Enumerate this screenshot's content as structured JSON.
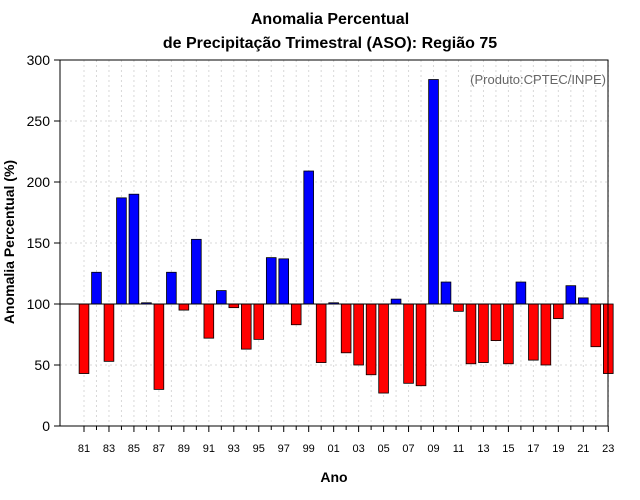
{
  "chart_data": {
    "type": "bar",
    "title_line1": "Anomalia Percentual",
    "title_line2": "de Precipitação Trimestral (ASO): Região 75",
    "xlabel": "Ano",
    "ylabel": "Anomalia Percentual (%)",
    "annotation": "(Produto:CPTEC/INPE)",
    "baseline": 100,
    "ylim": [
      0,
      300
    ],
    "yticks": [
      0,
      50,
      100,
      150,
      200,
      250,
      300
    ],
    "grid": true,
    "colors": {
      "above": "#0000ff",
      "below": "#ff0000",
      "edge": "#000000",
      "grid": "#d8d8d8"
    },
    "categories": [
      "81",
      "82",
      "83",
      "84",
      "85",
      "86",
      "87",
      "88",
      "89",
      "90",
      "91",
      "92",
      "93",
      "94",
      "95",
      "96",
      "97",
      "98",
      "99",
      "00",
      "01",
      "02",
      "03",
      "04",
      "05",
      "06",
      "07",
      "08",
      "09",
      "10",
      "11",
      "12",
      "13",
      "14",
      "15",
      "16",
      "17",
      "18",
      "19",
      "20",
      "21",
      "22",
      "23"
    ],
    "xtick_labels": [
      "81",
      "83",
      "85",
      "87",
      "89",
      "91",
      "93",
      "95",
      "97",
      "99",
      "01",
      "03",
      "05",
      "07",
      "09",
      "11",
      "13",
      "15",
      "17",
      "19",
      "21",
      "23"
    ],
    "values": [
      43,
      126,
      53,
      187,
      190,
      101,
      30,
      126,
      95,
      153,
      72,
      111,
      97,
      63,
      71,
      138,
      137,
      83,
      209,
      52,
      101,
      60,
      50,
      42,
      27,
      104,
      35,
      33,
      284,
      118,
      94,
      51,
      52,
      70,
      51,
      118,
      54,
      50,
      88,
      115,
      105,
      65,
      43
    ]
  }
}
